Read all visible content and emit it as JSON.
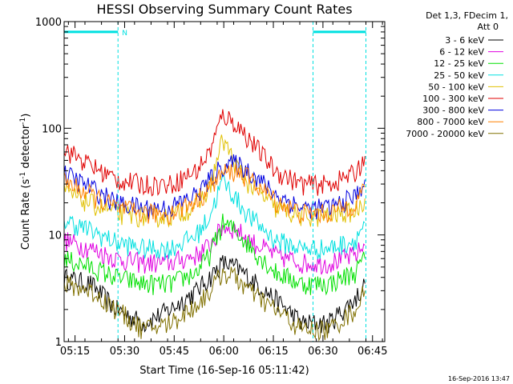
{
  "chart_data": {
    "type": "line",
    "title": "HESSI Observing Summary Count Rates",
    "xlabel": "Start Time (16-Sep-16 05:11:42)",
    "ylabel_main": "Count Rate (s",
    "ylabel_sup1": "-1",
    "ylabel_mid": " detector",
    "ylabel_sup2": "-1",
    "ylabel_end": ")",
    "yscale": "log",
    "ylim": [
      1,
      1000
    ],
    "xlim_minutes": [
      0,
      97
    ],
    "x_ticks": [
      {
        "label": "05:15",
        "minutes": 3.3
      },
      {
        "label": "05:30",
        "minutes": 18.3
      },
      {
        "label": "05:45",
        "minutes": 33.3
      },
      {
        "label": "06:00",
        "minutes": 48.3
      },
      {
        "label": "06:15",
        "minutes": 63.3
      },
      {
        "label": "06:30",
        "minutes": 78.3
      },
      {
        "label": "06:45",
        "minutes": 93.3
      }
    ],
    "y_ticks": [
      {
        "label": "1",
        "value": 1
      },
      {
        "label": "10",
        "value": 10
      },
      {
        "label": "100",
        "value": 100
      },
      {
        "label": "1000",
        "value": 1000
      }
    ],
    "legend_header": [
      "Det 1,3, FDecim 1,",
      "Att 0"
    ],
    "legend_position": "right",
    "flag_label": "N",
    "flag_color": "#00e0e0",
    "flag_segments_minutes": [
      [
        0,
        16.3
      ],
      [
        75.3,
        91.3
      ]
    ],
    "flag_level": 800,
    "series": [
      {
        "name": "3 - 6 keV",
        "color": "#000000",
        "x": [
          0,
          8,
          16,
          24,
          32,
          40,
          44,
          48,
          52,
          56,
          64,
          72,
          80,
          88,
          91
        ],
        "y": [
          4,
          3.5,
          2,
          1.5,
          2,
          3,
          4,
          5.5,
          5,
          4,
          2.5,
          1.5,
          1.5,
          2.5,
          3.5
        ]
      },
      {
        "name": "6 - 12 keV",
        "color": "#e000e0",
        "x": [
          0,
          8,
          16,
          24,
          32,
          40,
          44,
          48,
          52,
          56,
          64,
          72,
          80,
          88,
          91
        ],
        "y": [
          9,
          7.5,
          6,
          5.5,
          5.5,
          6.5,
          8,
          12,
          11.5,
          9,
          6.5,
          5.5,
          5.5,
          6.5,
          8
        ]
      },
      {
        "name": "12 - 25 keV",
        "color": "#00e000",
        "x": [
          0,
          8,
          16,
          24,
          32,
          40,
          44,
          48,
          52,
          56,
          64,
          72,
          80,
          88,
          91
        ],
        "y": [
          6,
          5,
          4,
          3.5,
          3.5,
          4.5,
          6.5,
          13,
          11,
          8,
          4.5,
          3.5,
          3.5,
          4.5,
          6
        ]
      },
      {
        "name": "25 - 50 keV",
        "color": "#00e0e0",
        "x": [
          0,
          8,
          16,
          24,
          32,
          40,
          44,
          48,
          52,
          56,
          64,
          72,
          80,
          88,
          91
        ],
        "y": [
          14,
          11,
          8.5,
          7.5,
          7.5,
          10,
          15,
          33,
          22,
          15,
          9,
          7.5,
          7.5,
          9,
          13
        ]
      },
      {
        "name": "50 - 100 keV",
        "color": "#e0c000",
        "x": [
          0,
          8,
          16,
          24,
          32,
          40,
          44,
          48,
          52,
          56,
          64,
          72,
          80,
          88,
          91
        ],
        "y": [
          25,
          20,
          16,
          15,
          15,
          19,
          27,
          80,
          45,
          30,
          18,
          15,
          15,
          17,
          22
        ]
      },
      {
        "name": "100 - 300 keV",
        "color": "#e00000",
        "x": [
          0,
          8,
          16,
          24,
          32,
          40,
          44,
          48,
          52,
          56,
          64,
          72,
          80,
          88,
          91
        ],
        "y": [
          65,
          45,
          33,
          30,
          30,
          40,
          60,
          135,
          110,
          80,
          40,
          30,
          30,
          38,
          55
        ]
      },
      {
        "name": "300 - 800 keV",
        "color": "#0000e0",
        "x": [
          0,
          8,
          16,
          24,
          32,
          40,
          44,
          48,
          52,
          56,
          64,
          72,
          80,
          88,
          91
        ],
        "y": [
          38,
          28,
          20,
          18,
          18,
          24,
          33,
          45,
          47,
          40,
          24,
          18,
          18,
          23,
          33
        ]
      },
      {
        "name": "800 - 7000 keV",
        "color": "#ff8000",
        "x": [
          0,
          8,
          16,
          24,
          32,
          40,
          44,
          48,
          52,
          56,
          64,
          72,
          80,
          88,
          91
        ],
        "y": [
          32,
          24,
          18,
          16,
          16,
          21,
          28,
          38,
          40,
          34,
          21,
          16,
          16,
          20,
          28
        ]
      },
      {
        "name": "7000 - 20000 keV",
        "color": "#807000",
        "x": [
          0,
          8,
          16,
          24,
          32,
          40,
          44,
          48,
          52,
          56,
          64,
          72,
          80,
          88,
          91
        ],
        "y": [
          3.5,
          3,
          2,
          1.3,
          1.5,
          2.2,
          3,
          4.5,
          4,
          3,
          2,
          1.3,
          1.3,
          2,
          3
        ]
      }
    ]
  },
  "footer": {
    "timestamp": "16-Sep-2016 13:47"
  }
}
